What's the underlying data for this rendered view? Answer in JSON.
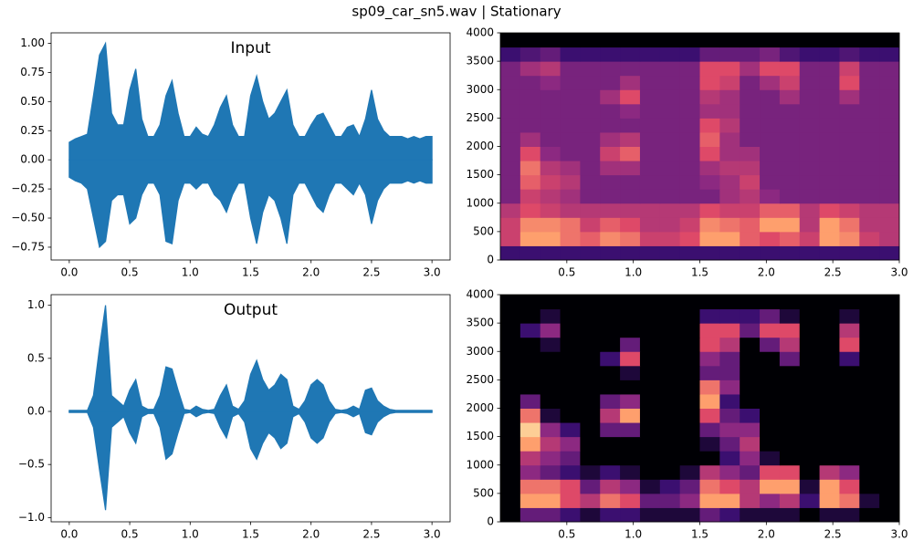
{
  "figure_title": "sp09_car_sn5.wav | Stationary",
  "chart_data": [
    {
      "type": "waveform",
      "title": "Input",
      "color": "#1f77b4",
      "xlim": [
        -0.15,
        3.15
      ],
      "ylim": [
        -0.86,
        1.09
      ],
      "xticks": [
        {
          "value": 0,
          "label": "0.0"
        },
        0.5,
        {
          "value": 1,
          "label": "1.0"
        },
        1.5,
        {
          "value": 2,
          "label": "2.0"
        },
        2.5,
        {
          "value": 3,
          "label": "3.0"
        }
      ],
      "yticks": [
        {
          "value": -0.75,
          "label": "−0.75"
        },
        {
          "value": -0.5,
          "label": "−0.50"
        },
        {
          "value": -0.25,
          "label": "−0.25"
        },
        {
          "value": 0,
          "label": "0.00"
        },
        0.25,
        {
          "value": 0.5,
          "label": "0.50"
        },
        0.75,
        {
          "value": 1,
          "label": "1.00"
        }
      ],
      "x": [
        0,
        0.05,
        0.1,
        0.15,
        0.2,
        0.25,
        0.3,
        0.35,
        0.4,
        0.45,
        0.5,
        0.55,
        0.6,
        0.65,
        0.7,
        0.75,
        0.8,
        0.85,
        0.9,
        0.95,
        1,
        1.05,
        1.1,
        1.15,
        1.2,
        1.25,
        1.3,
        1.35,
        1.4,
        1.45,
        1.5,
        1.55,
        1.6,
        1.65,
        1.7,
        1.75,
        1.8,
        1.85,
        1.9,
        1.95,
        2,
        2.05,
        2.1,
        2.15,
        2.2,
        2.25,
        2.3,
        2.35,
        2.4,
        2.45,
        2.5,
        2.55,
        2.6,
        2.65,
        2.7,
        2.75,
        2.8,
        2.85,
        2.9,
        2.95,
        3
      ],
      "upper": [
        0.15,
        0.18,
        0.2,
        0.22,
        0.55,
        0.9,
        1.0,
        0.4,
        0.3,
        0.3,
        0.6,
        0.78,
        0.35,
        0.2,
        0.2,
        0.3,
        0.55,
        0.68,
        0.4,
        0.2,
        0.2,
        0.28,
        0.22,
        0.2,
        0.3,
        0.45,
        0.55,
        0.3,
        0.2,
        0.2,
        0.55,
        0.72,
        0.5,
        0.35,
        0.4,
        0.5,
        0.6,
        0.3,
        0.2,
        0.2,
        0.3,
        0.38,
        0.4,
        0.3,
        0.2,
        0.2,
        0.28,
        0.3,
        0.2,
        0.35,
        0.6,
        0.35,
        0.25,
        0.2,
        0.2,
        0.2,
        0.18,
        0.2,
        0.18,
        0.2,
        0.2
      ],
      "lower": [
        -0.15,
        -0.18,
        -0.2,
        -0.25,
        -0.5,
        -0.75,
        -0.7,
        -0.35,
        -0.3,
        -0.3,
        -0.55,
        -0.5,
        -0.3,
        -0.2,
        -0.2,
        -0.3,
        -0.7,
        -0.72,
        -0.35,
        -0.2,
        -0.2,
        -0.25,
        -0.2,
        -0.2,
        -0.3,
        -0.35,
        -0.45,
        -0.3,
        -0.2,
        -0.2,
        -0.5,
        -0.72,
        -0.45,
        -0.3,
        -0.35,
        -0.5,
        -0.72,
        -0.3,
        -0.2,
        -0.2,
        -0.3,
        -0.4,
        -0.45,
        -0.3,
        -0.2,
        -0.2,
        -0.25,
        -0.3,
        -0.2,
        -0.3,
        -0.55,
        -0.35,
        -0.25,
        -0.2,
        -0.2,
        -0.2,
        -0.18,
        -0.2,
        -0.18,
        -0.2,
        -0.2
      ]
    },
    {
      "type": "spectrogram",
      "colormap": [
        "#000004",
        "#3b0f70",
        "#8c2981",
        "#de4968",
        "#fe9f6d",
        "#fcfdbf"
      ],
      "xlim": [
        0,
        3
      ],
      "ylim": [
        0,
        4000
      ],
      "xticks": [
        0.5,
        {
          "value": 1,
          "label": "1.0"
        },
        1.5,
        {
          "value": 2,
          "label": "2.0"
        },
        2.5,
        {
          "value": 3,
          "label": "3.0"
        }
      ],
      "yticks": [
        0,
        500,
        1000,
        1500,
        2000,
        2500,
        3000,
        3500,
        4000
      ],
      "z": [
        [
          0.2,
          0.2,
          0.2,
          0.2,
          0.2,
          0.2,
          0.2,
          0.2,
          0.2,
          0.2,
          0.2,
          0.2,
          0.2,
          0.2,
          0.2,
          0.2,
          0.2,
          0.2,
          0.2,
          0.2
        ],
        [
          0.55,
          0.8,
          0.8,
          0.7,
          0.65,
          0.75,
          0.7,
          0.55,
          0.55,
          0.6,
          0.8,
          0.8,
          0.65,
          0.6,
          0.65,
          0.55,
          0.8,
          0.75,
          0.55,
          0.5
        ],
        [
          0.55,
          0.75,
          0.75,
          0.7,
          0.55,
          0.65,
          0.6,
          0.5,
          0.5,
          0.55,
          0.75,
          0.7,
          0.65,
          0.8,
          0.8,
          0.5,
          0.8,
          0.7,
          0.5,
          0.5
        ],
        [
          0.5,
          0.6,
          0.55,
          0.5,
          0.5,
          0.5,
          0.5,
          0.5,
          0.5,
          0.5,
          0.6,
          0.55,
          0.55,
          0.65,
          0.65,
          0.5,
          0.6,
          0.55,
          0.5,
          0.5
        ],
        [
          0.35,
          0.55,
          0.5,
          0.45,
          0.35,
          0.35,
          0.35,
          0.35,
          0.35,
          0.35,
          0.35,
          0.45,
          0.5,
          0.4,
          0.35,
          0.35,
          0.35,
          0.35,
          0.35,
          0.35
        ],
        [
          0.35,
          0.65,
          0.55,
          0.5,
          0.35,
          0.35,
          0.35,
          0.35,
          0.35,
          0.35,
          0.4,
          0.45,
          0.55,
          0.35,
          0.35,
          0.35,
          0.35,
          0.35,
          0.35,
          0.35
        ],
        [
          0.35,
          0.7,
          0.5,
          0.45,
          0.35,
          0.45,
          0.45,
          0.35,
          0.35,
          0.35,
          0.45,
          0.5,
          0.5,
          0.35,
          0.35,
          0.35,
          0.35,
          0.35,
          0.35,
          0.35
        ],
        [
          0.35,
          0.6,
          0.4,
          0.35,
          0.35,
          0.55,
          0.65,
          0.35,
          0.35,
          0.35,
          0.6,
          0.45,
          0.45,
          0.35,
          0.35,
          0.35,
          0.35,
          0.35,
          0.35,
          0.35
        ],
        [
          0.35,
          0.45,
          0.35,
          0.35,
          0.35,
          0.45,
          0.5,
          0.35,
          0.35,
          0.35,
          0.65,
          0.45,
          0.35,
          0.35,
          0.35,
          0.35,
          0.35,
          0.35,
          0.35,
          0.35
        ],
        [
          0.35,
          0.35,
          0.35,
          0.35,
          0.35,
          0.35,
          0.35,
          0.35,
          0.35,
          0.35,
          0.6,
          0.5,
          0.35,
          0.35,
          0.35,
          0.35,
          0.35,
          0.35,
          0.35,
          0.35
        ],
        [
          0.35,
          0.35,
          0.35,
          0.35,
          0.35,
          0.35,
          0.4,
          0.35,
          0.35,
          0.35,
          0.45,
          0.45,
          0.35,
          0.35,
          0.35,
          0.35,
          0.35,
          0.35,
          0.35,
          0.35
        ],
        [
          0.35,
          0.35,
          0.35,
          0.35,
          0.35,
          0.45,
          0.6,
          0.35,
          0.35,
          0.35,
          0.5,
          0.45,
          0.35,
          0.35,
          0.45,
          0.35,
          0.35,
          0.45,
          0.35,
          0.35
        ],
        [
          0.35,
          0.35,
          0.4,
          0.35,
          0.35,
          0.35,
          0.45,
          0.35,
          0.35,
          0.35,
          0.6,
          0.55,
          0.35,
          0.45,
          0.55,
          0.35,
          0.35,
          0.6,
          0.35,
          0.35
        ],
        [
          0.35,
          0.45,
          0.5,
          0.35,
          0.35,
          0.35,
          0.35,
          0.35,
          0.35,
          0.35,
          0.6,
          0.6,
          0.45,
          0.6,
          0.6,
          0.35,
          0.35,
          0.55,
          0.35,
          0.35
        ],
        [
          0.2,
          0.25,
          0.3,
          0.2,
          0.2,
          0.2,
          0.2,
          0.2,
          0.2,
          0.2,
          0.3,
          0.3,
          0.3,
          0.35,
          0.25,
          0.2,
          0.2,
          0.25,
          0.2,
          0.2
        ],
        [
          0,
          0,
          0,
          0,
          0,
          0,
          0,
          0,
          0,
          0,
          0,
          0,
          0,
          0,
          0,
          0,
          0,
          0,
          0,
          0
        ]
      ]
    },
    {
      "type": "waveform",
      "title": "Output",
      "color": "#1f77b4",
      "xlim": [
        -0.15,
        3.15
      ],
      "ylim": [
        -1.04,
        1.1
      ],
      "xticks": [
        {
          "value": 0,
          "label": "0.0"
        },
        0.5,
        {
          "value": 1,
          "label": "1.0"
        },
        1.5,
        {
          "value": 2,
          "label": "2.0"
        },
        2.5,
        {
          "value": 3,
          "label": "3.0"
        }
      ],
      "yticks": [
        {
          "value": -1,
          "label": "−1.0"
        },
        {
          "value": -0.5,
          "label": "−0.5"
        },
        {
          "value": 0,
          "label": "0.0"
        },
        0.5,
        {
          "value": 1,
          "label": "1.0"
        }
      ],
      "x": [
        0,
        0.05,
        0.1,
        0.15,
        0.2,
        0.25,
        0.3,
        0.35,
        0.4,
        0.45,
        0.5,
        0.55,
        0.6,
        0.65,
        0.7,
        0.75,
        0.8,
        0.85,
        0.9,
        0.95,
        1,
        1.05,
        1.1,
        1.15,
        1.2,
        1.25,
        1.3,
        1.35,
        1.4,
        1.45,
        1.5,
        1.55,
        1.6,
        1.65,
        1.7,
        1.75,
        1.8,
        1.85,
        1.9,
        1.95,
        2,
        2.05,
        2.1,
        2.15,
        2.2,
        2.25,
        2.3,
        2.35,
        2.4,
        2.45,
        2.5,
        2.55,
        2.6,
        2.65,
        2.7,
        2.75,
        2.8,
        2.85,
        2.9,
        2.95,
        3
      ],
      "upper": [
        0.01,
        0.01,
        0.01,
        0.01,
        0.15,
        0.6,
        1.0,
        0.15,
        0.1,
        0.05,
        0.2,
        0.3,
        0.05,
        0.02,
        0.02,
        0.15,
        0.42,
        0.4,
        0.2,
        0.02,
        0.01,
        0.05,
        0.02,
        0.01,
        0.02,
        0.15,
        0.25,
        0.05,
        0.02,
        0.1,
        0.35,
        0.48,
        0.3,
        0.2,
        0.25,
        0.35,
        0.3,
        0.05,
        0.02,
        0.1,
        0.25,
        0.3,
        0.25,
        0.1,
        0.02,
        0.01,
        0.02,
        0.05,
        0.02,
        0.2,
        0.22,
        0.1,
        0.05,
        0.02,
        0.01,
        0.01,
        0.01,
        0.01,
        0.01,
        0.01,
        0.01
      ],
      "lower": [
        -0.01,
        -0.01,
        -0.01,
        -0.01,
        -0.15,
        -0.55,
        -0.93,
        -0.15,
        -0.1,
        -0.05,
        -0.2,
        -0.3,
        -0.05,
        -0.02,
        -0.02,
        -0.15,
        -0.45,
        -0.4,
        -0.2,
        -0.02,
        -0.01,
        -0.05,
        -0.02,
        -0.01,
        -0.02,
        -0.15,
        -0.25,
        -0.05,
        -0.02,
        -0.1,
        -0.35,
        -0.45,
        -0.3,
        -0.2,
        -0.25,
        -0.35,
        -0.3,
        -0.05,
        -0.02,
        -0.1,
        -0.25,
        -0.3,
        -0.25,
        -0.1,
        -0.02,
        -0.01,
        -0.02,
        -0.05,
        -0.02,
        -0.2,
        -0.22,
        -0.1,
        -0.05,
        -0.02,
        -0.01,
        -0.01,
        -0.01,
        -0.01,
        -0.01,
        -0.01,
        -0.01
      ]
    },
    {
      "type": "spectrogram",
      "colormap": [
        "#000004",
        "#3b0f70",
        "#8c2981",
        "#de4968",
        "#fe9f6d",
        "#fcfdbf"
      ],
      "xlim": [
        0,
        3
      ],
      "ylim": [
        0,
        4000
      ],
      "xticks": [
        0.5,
        {
          "value": 1,
          "label": "1.0"
        },
        1.5,
        {
          "value": 2,
          "label": "2.0"
        },
        2.5,
        {
          "value": 3,
          "label": "3.0"
        }
      ],
      "yticks": [
        0,
        500,
        1000,
        1500,
        2000,
        2500,
        3000,
        3500,
        4000
      ],
      "z": [
        [
          0,
          0.3,
          0.3,
          0.2,
          0.1,
          0.2,
          0.2,
          0.1,
          0.1,
          0.1,
          0.3,
          0.2,
          0.1,
          0.1,
          0.1,
          0,
          0.1,
          0.1,
          0,
          0
        ],
        [
          0,
          0.8,
          0.8,
          0.6,
          0.5,
          0.7,
          0.6,
          0.3,
          0.3,
          0.4,
          0.8,
          0.8,
          0.5,
          0.4,
          0.5,
          0.2,
          0.8,
          0.7,
          0.1,
          0
        ],
        [
          0,
          0.7,
          0.7,
          0.6,
          0.3,
          0.5,
          0.4,
          0.1,
          0.2,
          0.3,
          0.7,
          0.6,
          0.5,
          0.8,
          0.8,
          0.1,
          0.8,
          0.6,
          0,
          0
        ],
        [
          0,
          0.4,
          0.3,
          0.2,
          0.1,
          0.2,
          0.1,
          0,
          0,
          0.1,
          0.5,
          0.4,
          0.3,
          0.6,
          0.6,
          0,
          0.5,
          0.4,
          0,
          0
        ],
        [
          0,
          0.5,
          0.4,
          0.3,
          0,
          0,
          0,
          0,
          0,
          0,
          0,
          0.2,
          0.4,
          0.1,
          0,
          0,
          0,
          0,
          0,
          0
        ],
        [
          0,
          0.8,
          0.5,
          0.4,
          0,
          0,
          0,
          0,
          0,
          0,
          0.1,
          0.3,
          0.5,
          0,
          0,
          0,
          0,
          0,
          0,
          0
        ],
        [
          0,
          0.9,
          0.4,
          0.2,
          0,
          0.3,
          0.3,
          0,
          0,
          0,
          0.3,
          0.4,
          0.4,
          0,
          0,
          0,
          0,
          0,
          0,
          0
        ],
        [
          0,
          0.7,
          0.1,
          0,
          0,
          0.5,
          0.8,
          0,
          0,
          0,
          0.6,
          0.3,
          0.2,
          0,
          0,
          0,
          0,
          0,
          0,
          0
        ],
        [
          0,
          0.3,
          0,
          0,
          0,
          0.3,
          0.4,
          0,
          0,
          0,
          0.8,
          0.2,
          0,
          0,
          0,
          0,
          0,
          0,
          0,
          0
        ],
        [
          0,
          0,
          0,
          0,
          0,
          0,
          0,
          0,
          0,
          0,
          0.7,
          0.4,
          0,
          0,
          0,
          0,
          0,
          0,
          0,
          0
        ],
        [
          0,
          0,
          0,
          0,
          0,
          0,
          0.1,
          0,
          0,
          0,
          0.3,
          0.3,
          0,
          0,
          0,
          0,
          0,
          0,
          0,
          0
        ],
        [
          0,
          0,
          0,
          0,
          0,
          0.2,
          0.6,
          0,
          0,
          0,
          0.4,
          0.3,
          0,
          0,
          0.3,
          0,
          0,
          0.2,
          0,
          0
        ],
        [
          0,
          0,
          0.1,
          0,
          0,
          0,
          0.3,
          0,
          0,
          0,
          0.6,
          0.5,
          0,
          0.3,
          0.5,
          0,
          0,
          0.6,
          0,
          0
        ],
        [
          0,
          0.2,
          0.4,
          0,
          0,
          0,
          0,
          0,
          0,
          0,
          0.6,
          0.6,
          0.3,
          0.6,
          0.6,
          0,
          0,
          0.5,
          0,
          0
        ],
        [
          0,
          0,
          0.1,
          0,
          0,
          0,
          0,
          0,
          0,
          0,
          0.2,
          0.2,
          0.2,
          0.3,
          0.1,
          0,
          0,
          0.1,
          0,
          0
        ],
        [
          0,
          0,
          0,
          0,
          0,
          0,
          0,
          0,
          0,
          0,
          0,
          0,
          0,
          0,
          0,
          0,
          0,
          0,
          0,
          0
        ]
      ]
    }
  ]
}
